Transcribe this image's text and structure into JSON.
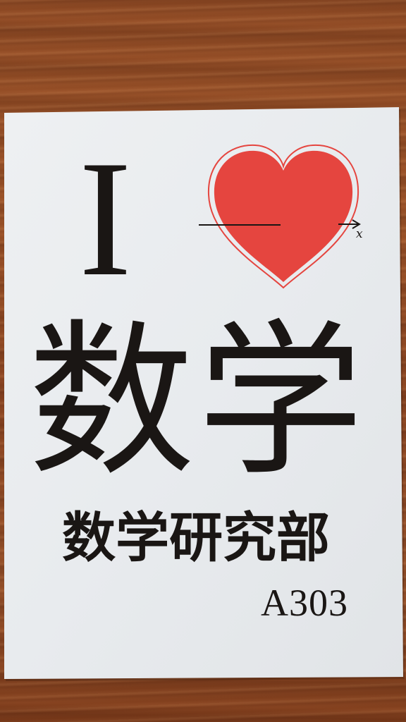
{
  "sign": {
    "letter": "I",
    "word": "数学",
    "club": "数学研究部",
    "room": "A303",
    "axis_label": "x",
    "heart_icon": "heart-icon",
    "colors": {
      "heart_fill": "#e5453f",
      "heart_outline": "#e5453f",
      "ink": "#1a1614",
      "paper": "#e9ecef",
      "table_wood": "#8d4a25"
    }
  }
}
